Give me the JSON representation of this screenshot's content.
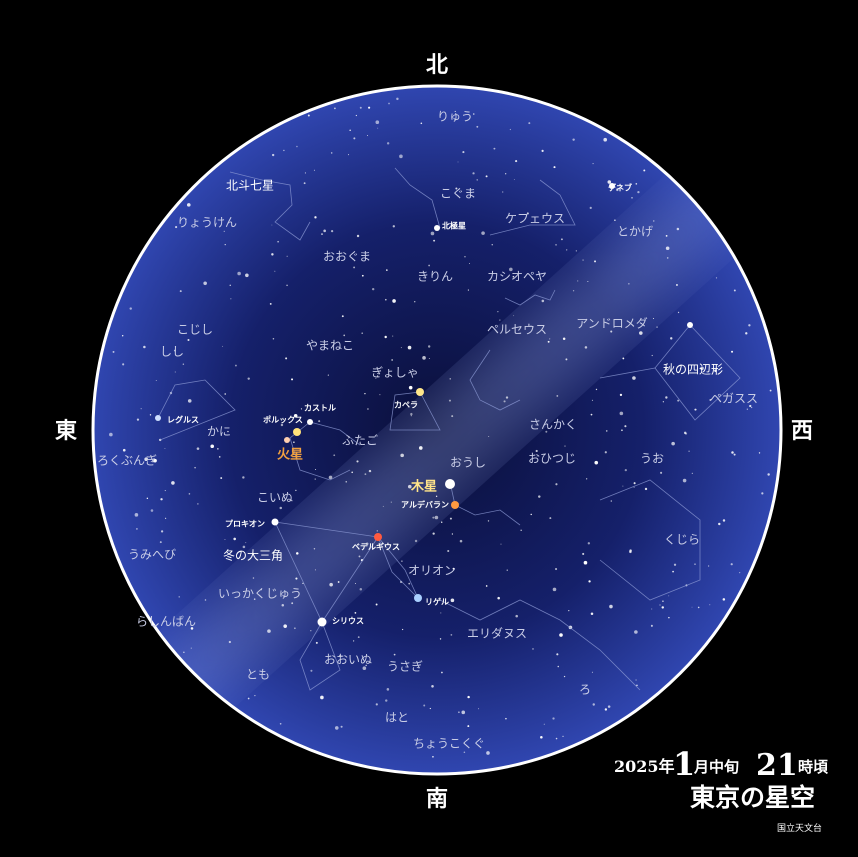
{
  "directions": {
    "north": "北",
    "east": "東",
    "west": "西",
    "south": "南"
  },
  "constellations": [
    "りゅう",
    "こぐま",
    "ケフェウス",
    "とかげ",
    "北斗七星",
    "りょうけん",
    "おおぐま",
    "きりん",
    "カシオペヤ",
    "アンドロメダ",
    "ペルセウス",
    "こじし",
    "しし",
    "やまねこ",
    "秋の四辺形",
    "ペガスス",
    "ぎょしゃ",
    "かに",
    "ふたご",
    "さんかく",
    "おひつじ",
    "うお",
    "ろくぶんぎ",
    "おうし",
    "こいぬ",
    "うみへび",
    "冬の大三角",
    "くじら",
    "オリオン",
    "いっかくじゅう",
    "らしんばん",
    "エリダヌス",
    "おおいぬ",
    "うさぎ",
    "とも",
    "ろ",
    "はと",
    "ちょうこくぐ"
  ],
  "stars": [
    "北極星",
    "デネブ",
    "カペラ",
    "カストル",
    "ポルックス",
    "レグルス",
    "アルデバラン",
    "プロキオン",
    "ベテルギウス",
    "シリウス",
    "リゲル"
  ],
  "planets": [
    "火星",
    "木星"
  ],
  "caption": {
    "year": "2025年",
    "month": "1",
    "period": "月中旬",
    "hour": "21",
    "hour_suffix": "時頃",
    "title": "東京の星空",
    "credit": "国立天文台"
  }
}
